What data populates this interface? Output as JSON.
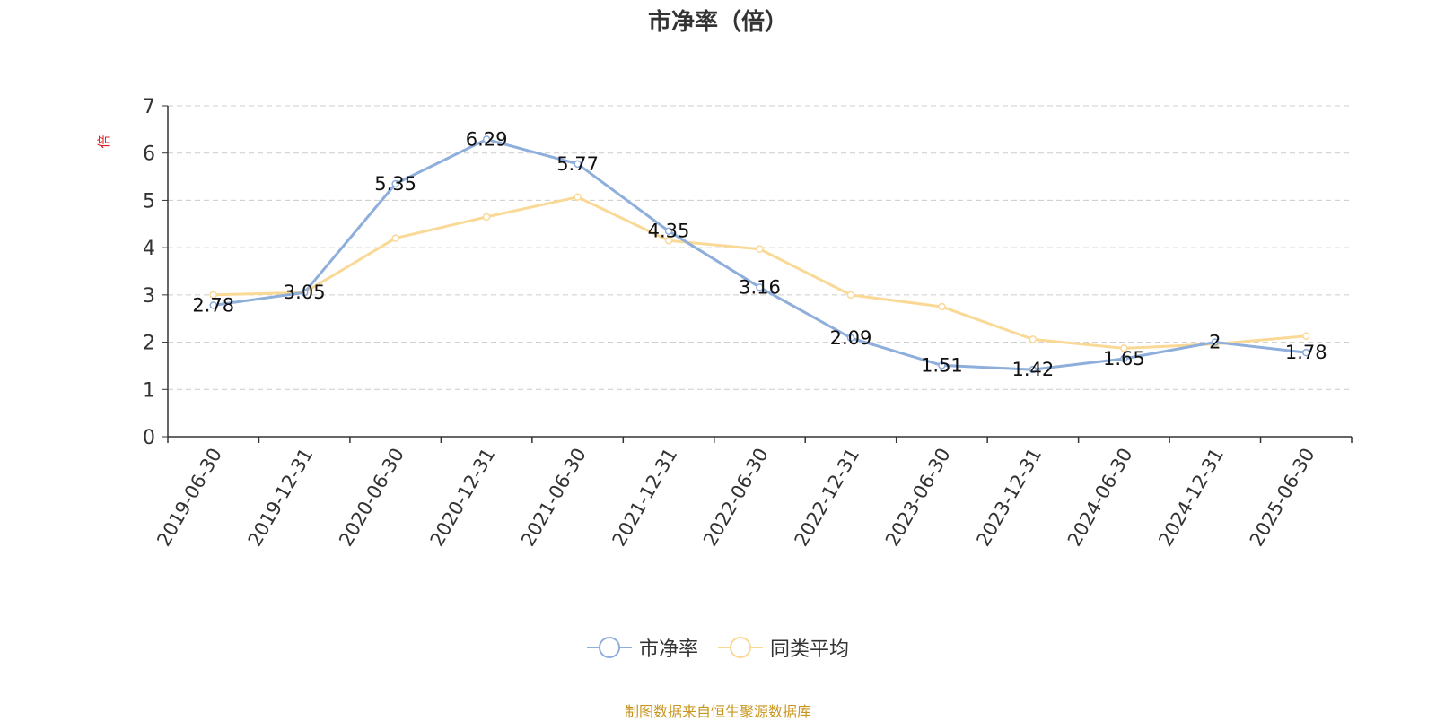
{
  "chart_data": {
    "type": "line",
    "title": "市净率（倍）",
    "ylabel": "倍",
    "ylim": [
      0,
      7
    ],
    "yticks": [
      0,
      1,
      2,
      3,
      4,
      5,
      6,
      7
    ],
    "grid": true,
    "legend_position": "bottom-center",
    "categories": [
      "2019-06-30",
      "2019-12-31",
      "2020-06-30",
      "2020-12-31",
      "2021-06-30",
      "2021-12-31",
      "2022-06-30",
      "2022-12-31",
      "2023-06-30",
      "2023-12-31",
      "2024-06-30",
      "2024-12-31",
      "2025-06-30"
    ],
    "series": [
      {
        "name": "市净率",
        "color": "#8eaedb",
        "values": [
          2.78,
          3.05,
          5.35,
          6.29,
          5.77,
          4.35,
          3.16,
          2.09,
          1.51,
          1.42,
          1.65,
          2,
          1.78
        ],
        "labels": [
          "2.78",
          "3.05",
          "5.35",
          "6.29",
          "5.77",
          "4.35",
          "3.16",
          "2.09",
          "1.51",
          "1.42",
          "1.65",
          "2",
          "1.78"
        ]
      },
      {
        "name": "同类平均",
        "color": "#fad997",
        "values": [
          3.0,
          3.05,
          4.2,
          4.65,
          5.07,
          4.15,
          3.97,
          3.0,
          2.75,
          2.06,
          1.87,
          1.96,
          2.13
        ]
      }
    ],
    "source_note": "制图数据来自恒生聚源数据库"
  }
}
